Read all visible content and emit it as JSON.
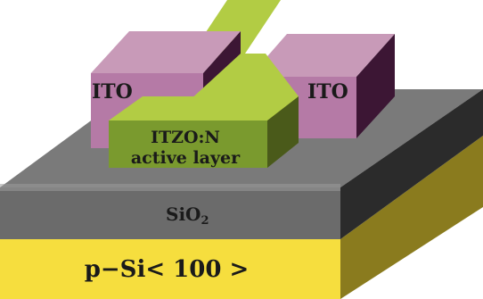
{
  "layers": {
    "substrate": {
      "label": "p−Si< 100 >",
      "top_color": "#e4d45a",
      "front_color": "#f6de3e",
      "side_color": "#8a7b1e"
    },
    "oxide": {
      "label_main": "SiO",
      "label_sub": "2",
      "top_color": "#7a7a7a",
      "front_color": "#6b6b6b",
      "side_color": "#2b2b2b"
    },
    "active": {
      "label_line1": "ITZO:N",
      "label_line2": "active layer",
      "top_color": "#b2cc44",
      "front_color": "#7a9a2e",
      "side_color": "#4a5a1a"
    },
    "electrode_left": {
      "label": "ITO",
      "top_color": "#c89ab8",
      "front_color": "#b57aa6",
      "side_color": "#3c1634"
    },
    "electrode_right": {
      "label": "ITO",
      "top_color": "#c89ab8",
      "front_color": "#b57aa6",
      "side_color": "#3c1634"
    }
  }
}
